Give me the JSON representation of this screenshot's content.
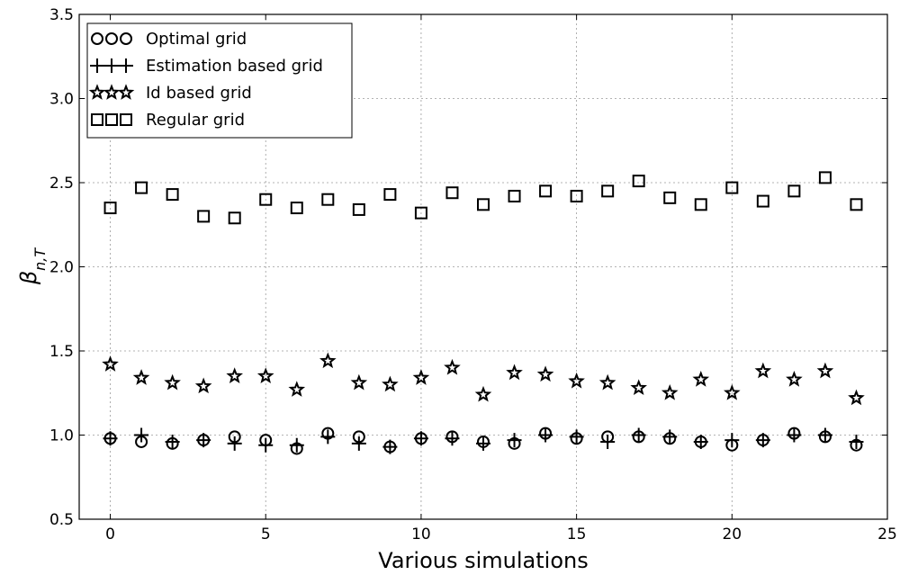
{
  "chart_data": {
    "type": "scatter",
    "title": "",
    "xlabel": "Various simulations",
    "ylabel": "β_{n,T}",
    "xlim": [
      -1,
      25
    ],
    "ylim": [
      0.5,
      3.5
    ],
    "xticks": [
      0,
      5,
      10,
      15,
      20,
      25
    ],
    "yticks": [
      0.5,
      1.0,
      1.5,
      2.0,
      2.5,
      3.0,
      3.5
    ],
    "xtick_labels": [
      "0",
      "5",
      "10",
      "15",
      "20",
      "25"
    ],
    "ytick_labels": [
      "0.5",
      "1.0",
      "1.5",
      "2.0",
      "2.5",
      "3.0",
      "3.5"
    ],
    "grid": true,
    "legend_position": "top-left",
    "x": [
      0,
      1,
      2,
      3,
      4,
      5,
      6,
      7,
      8,
      9,
      10,
      11,
      12,
      13,
      14,
      15,
      16,
      17,
      18,
      19,
      20,
      21,
      22,
      23,
      24
    ],
    "series": [
      {
        "name": "Optimal grid",
        "marker": "circle",
        "color": "#000000",
        "values": [
          0.98,
          0.96,
          0.95,
          0.97,
          0.99,
          0.97,
          0.92,
          1.01,
          0.99,
          0.93,
          0.98,
          0.99,
          0.96,
          0.95,
          1.01,
          0.98,
          0.99,
          0.99,
          0.98,
          0.96,
          0.94,
          0.97,
          1.01,
          0.99,
          0.94
        ]
      },
      {
        "name": "Estimation based grid",
        "marker": "plus",
        "color": "#000000",
        "values": [
          0.98,
          1.0,
          0.96,
          0.97,
          0.95,
          0.94,
          0.94,
          0.99,
          0.95,
          0.93,
          0.98,
          0.98,
          0.95,
          0.97,
          1.0,
          0.99,
          0.96,
          1.0,
          0.99,
          0.96,
          0.97,
          0.97,
          1.0,
          1.0,
          0.96
        ]
      },
      {
        "name": "Id based grid",
        "marker": "star",
        "color": "#000000",
        "values": [
          1.42,
          1.34,
          1.31,
          1.29,
          1.35,
          1.35,
          1.27,
          1.44,
          1.31,
          1.3,
          1.34,
          1.4,
          1.24,
          1.37,
          1.36,
          1.32,
          1.31,
          1.28,
          1.25,
          1.33,
          1.25,
          1.38,
          1.33,
          1.38,
          1.22
        ]
      },
      {
        "name": "Regular grid",
        "marker": "square",
        "color": "#000000",
        "values": [
          2.35,
          2.47,
          2.43,
          2.3,
          2.29,
          2.4,
          2.35,
          2.4,
          2.34,
          2.43,
          2.32,
          2.44,
          2.37,
          2.42,
          2.45,
          2.42,
          2.45,
          2.51,
          2.41,
          2.37,
          2.47,
          2.39,
          2.45,
          2.53,
          2.37
        ]
      }
    ]
  }
}
